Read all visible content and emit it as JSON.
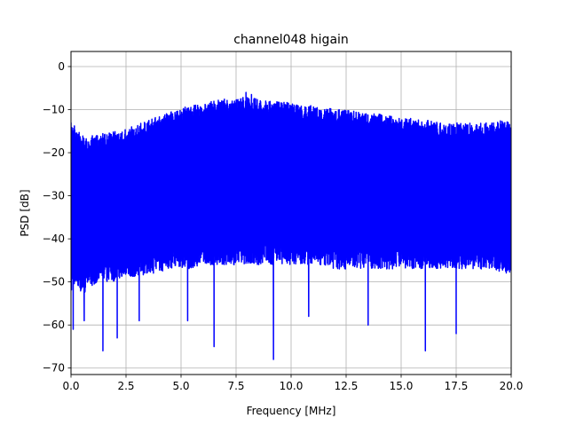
{
  "chart_data": {
    "type": "line",
    "title": "channel048 higain",
    "xlabel": "Frequency [MHz]",
    "ylabel": "PSD [dB]",
    "xlim": [
      0,
      20
    ],
    "ylim": [
      -71.5,
      3.5
    ],
    "xticks": [
      0,
      2.5,
      5,
      7.5,
      10,
      12.5,
      15,
      17.5,
      20
    ],
    "xtick_labels": [
      "0.0",
      "2.5",
      "5.0",
      "7.5",
      "10.0",
      "12.5",
      "15.0",
      "17.5",
      "20.0"
    ],
    "yticks": [
      0,
      -10,
      -20,
      -30,
      -40,
      -50,
      -60,
      -70
    ],
    "ytick_labels": [
      "0",
      "−10",
      "−20",
      "−30",
      "−40",
      "−50",
      "−60",
      "−70"
    ],
    "grid": true,
    "legend": "none",
    "series": [
      {
        "color": "#0000ff",
        "upper_envelope": {
          "x": [
            0,
            0.25,
            0.5,
            1,
            1.5,
            2,
            2.5,
            3,
            3.5,
            4,
            4.5,
            5,
            5.5,
            6,
            6.5,
            7,
            7.5,
            8,
            8.5,
            9,
            9.5,
            10,
            10.5,
            11,
            11.5,
            12,
            12.5,
            13,
            13.5,
            14,
            14.5,
            15,
            15.5,
            16,
            16.5,
            17,
            17.5,
            18,
            18.5,
            19,
            19.5,
            20
          ],
          "y": [
            -13,
            -14,
            -16,
            -16,
            -15.5,
            -15,
            -14.5,
            -13.5,
            -12.5,
            -11.5,
            -10.5,
            -9.5,
            -9,
            -8.5,
            -8,
            -7.5,
            -7.5,
            -7,
            -7.5,
            -8,
            -8,
            -8.5,
            -9,
            -9,
            -9.5,
            -10,
            -10,
            -10.5,
            -11,
            -11,
            -11.5,
            -12,
            -12,
            -12.5,
            -12.5,
            -13,
            -13,
            -13,
            -13,
            -13,
            -12.5,
            -13
          ]
        },
        "lower_envelope": {
          "x": [
            0,
            0.25,
            0.5,
            1,
            1.5,
            2,
            2.5,
            3,
            3.5,
            4,
            4.5,
            5,
            5.5,
            6,
            6.5,
            7,
            7.5,
            8,
            8.5,
            9,
            9.5,
            10,
            10.5,
            11,
            11.5,
            12,
            12.5,
            13,
            13.5,
            14,
            14.5,
            15,
            15.5,
            16,
            16.5,
            17,
            17.5,
            18,
            18.5,
            19,
            19.5,
            20
          ],
          "y": [
            -52,
            -51,
            -53,
            -51,
            -50,
            -50,
            -49,
            -49,
            -48,
            -48,
            -47,
            -47,
            -47,
            -46,
            -46,
            -46,
            -46,
            -46,
            -46,
            -46,
            -46,
            -46,
            -46,
            -46,
            -46,
            -47,
            -47,
            -47,
            -47,
            -47,
            -47,
            -47,
            -47,
            -47,
            -47,
            -47,
            -47,
            -47,
            -47,
            -47,
            -48,
            -48
          ]
        },
        "notable_values": [
          {
            "x": 0.1,
            "y": -61
          },
          {
            "x": 0.6,
            "y": -59
          },
          {
            "x": 1.45,
            "y": -66
          },
          {
            "x": 2.1,
            "y": -63
          },
          {
            "x": 3.1,
            "y": -59
          },
          {
            "x": 5.3,
            "y": -59
          },
          {
            "x": 6.5,
            "y": -65
          },
          {
            "x": 9.2,
            "y": -68
          },
          {
            "x": 10.8,
            "y": -58
          },
          {
            "x": 13.5,
            "y": -60
          },
          {
            "x": 16.1,
            "y": -66
          },
          {
            "x": 17.5,
            "y": -62
          },
          {
            "x": 7.95,
            "y": -6
          },
          {
            "x": 8.2,
            "y": -6.5
          }
        ]
      }
    ]
  }
}
